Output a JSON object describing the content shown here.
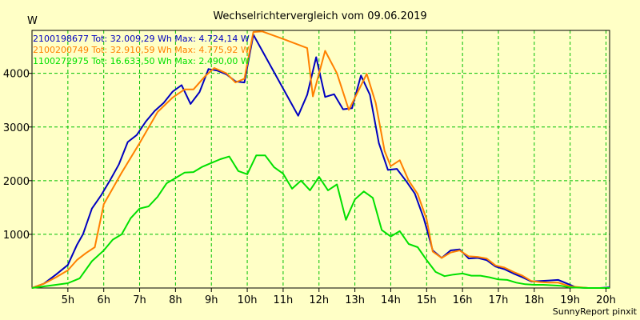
{
  "chart_data": {
    "type": "line",
    "title": "Wechselrichtervergleich vom 09.06.2019",
    "ylabel": "W",
    "xlabel": "",
    "credit": "SunnyReport pinxit",
    "xlim": [
      4.0,
      20.1
    ],
    "ylim": [
      0,
      4800
    ],
    "x_ticks": [
      5,
      6,
      7,
      8,
      9,
      10,
      11,
      12,
      13,
      14,
      15,
      16,
      17,
      18,
      19,
      20
    ],
    "x_tick_labels": [
      "5h",
      "6h",
      "7h",
      "8h",
      "9h",
      "10h",
      "11h",
      "12h",
      "13h",
      "14h",
      "15h",
      "16h",
      "17h",
      "18h",
      "19h",
      "20h"
    ],
    "y_ticks": [
      1000,
      2000,
      3000,
      4000
    ],
    "y_tick_labels": [
      "1000",
      "2000",
      "3000",
      "4000"
    ],
    "grid": true,
    "legend_position": "top-left",
    "series": [
      {
        "name": "2100198677",
        "legend": "2100198677 Tot: 32.009,29 Wh Max: 4.724,14 W",
        "color": "#0000c0",
        "points": [
          [
            4.0,
            0
          ],
          [
            4.33,
            80
          ],
          [
            4.67,
            250
          ],
          [
            5.0,
            430
          ],
          [
            5.25,
            800
          ],
          [
            5.42,
            1000
          ],
          [
            5.67,
            1480
          ],
          [
            5.92,
            1720
          ],
          [
            6.17,
            2000
          ],
          [
            6.42,
            2300
          ],
          [
            6.67,
            2720
          ],
          [
            6.92,
            2850
          ],
          [
            7.17,
            3100
          ],
          [
            7.42,
            3300
          ],
          [
            7.67,
            3450
          ],
          [
            7.92,
            3660
          ],
          [
            8.17,
            3780
          ],
          [
            8.42,
            3430
          ],
          [
            8.67,
            3650
          ],
          [
            8.92,
            4080
          ],
          [
            9.17,
            4050
          ],
          [
            9.42,
            3980
          ],
          [
            9.67,
            3850
          ],
          [
            9.92,
            3830
          ],
          [
            10.17,
            4720
          ],
          [
            11.42,
            3210
          ],
          [
            11.67,
            3600
          ],
          [
            11.92,
            4300
          ],
          [
            12.17,
            3560
          ],
          [
            12.42,
            3610
          ],
          [
            12.67,
            3330
          ],
          [
            12.92,
            3350
          ],
          [
            13.17,
            3960
          ],
          [
            13.42,
            3600
          ],
          [
            13.67,
            2700
          ],
          [
            13.92,
            2200
          ],
          [
            14.17,
            2220
          ],
          [
            14.42,
            2000
          ],
          [
            14.67,
            1760
          ],
          [
            14.92,
            1300
          ],
          [
            15.17,
            700
          ],
          [
            15.42,
            560
          ],
          [
            15.67,
            700
          ],
          [
            15.92,
            720
          ],
          [
            16.17,
            550
          ],
          [
            16.42,
            560
          ],
          [
            16.67,
            520
          ],
          [
            16.92,
            400
          ],
          [
            17.17,
            350
          ],
          [
            17.42,
            270
          ],
          [
            17.67,
            200
          ],
          [
            17.92,
            120
          ],
          [
            18.17,
            130
          ],
          [
            18.42,
            140
          ],
          [
            18.67,
            150
          ],
          [
            18.92,
            80
          ],
          [
            19.17,
            10
          ],
          [
            19.5,
            0
          ],
          [
            19.83,
            0
          ],
          [
            20.1,
            10
          ]
        ]
      },
      {
        "name": "2100200749",
        "legend": "2100200749 Tot: 32.910,59 Wh Max: 4.775,92 W",
        "color": "#ff8000",
        "points": [
          [
            4.0,
            0
          ],
          [
            4.33,
            80
          ],
          [
            4.67,
            200
          ],
          [
            5.0,
            330
          ],
          [
            5.25,
            520
          ],
          [
            5.5,
            650
          ],
          [
            5.75,
            760
          ],
          [
            6.0,
            1560
          ],
          [
            6.5,
            2150
          ],
          [
            7.0,
            2700
          ],
          [
            7.5,
            3280
          ],
          [
            7.92,
            3550
          ],
          [
            8.25,
            3700
          ],
          [
            8.5,
            3700
          ],
          [
            8.83,
            3950
          ],
          [
            9.08,
            4100
          ],
          [
            9.42,
            4000
          ],
          [
            9.67,
            3830
          ],
          [
            9.92,
            3900
          ],
          [
            10.17,
            4770
          ],
          [
            10.42,
            4780
          ],
          [
            11.0,
            4640
          ],
          [
            11.67,
            4470
          ],
          [
            11.83,
            3570
          ],
          [
            12.17,
            4420
          ],
          [
            12.5,
            4000
          ],
          [
            12.83,
            3320
          ],
          [
            13.08,
            3650
          ],
          [
            13.33,
            3990
          ],
          [
            13.58,
            3450
          ],
          [
            13.83,
            2550
          ],
          [
            14.0,
            2270
          ],
          [
            14.25,
            2380
          ],
          [
            14.5,
            2000
          ],
          [
            14.75,
            1750
          ],
          [
            15.0,
            1280
          ],
          [
            15.17,
            680
          ],
          [
            15.42,
            560
          ],
          [
            15.67,
            660
          ],
          [
            15.92,
            700
          ],
          [
            16.17,
            590
          ],
          [
            16.42,
            580
          ],
          [
            16.67,
            550
          ],
          [
            16.92,
            420
          ],
          [
            17.17,
            380
          ],
          [
            17.42,
            300
          ],
          [
            17.67,
            230
          ],
          [
            17.92,
            130
          ],
          [
            18.17,
            110
          ],
          [
            18.42,
            100
          ],
          [
            18.67,
            100
          ],
          [
            19.0,
            30
          ],
          [
            19.5,
            0
          ],
          [
            20.1,
            0
          ]
        ]
      },
      {
        "name": "1100272975",
        "legend": "1100272975 Tot: 16.633,50 Wh Max: 2.490,00 W",
        "color": "#00e000",
        "points": [
          [
            4.0,
            0
          ],
          [
            4.33,
            30
          ],
          [
            4.67,
            60
          ],
          [
            5.0,
            90
          ],
          [
            5.33,
            180
          ],
          [
            5.67,
            500
          ],
          [
            6.0,
            700
          ],
          [
            6.25,
            900
          ],
          [
            6.5,
            1000
          ],
          [
            6.75,
            1300
          ],
          [
            7.0,
            1480
          ],
          [
            7.25,
            1520
          ],
          [
            7.5,
            1700
          ],
          [
            7.75,
            1950
          ],
          [
            8.0,
            2050
          ],
          [
            8.25,
            2150
          ],
          [
            8.5,
            2160
          ],
          [
            8.75,
            2260
          ],
          [
            9.0,
            2330
          ],
          [
            9.25,
            2400
          ],
          [
            9.5,
            2450
          ],
          [
            9.75,
            2180
          ],
          [
            10.0,
            2120
          ],
          [
            10.25,
            2470
          ],
          [
            10.5,
            2470
          ],
          [
            10.75,
            2250
          ],
          [
            11.0,
            2130
          ],
          [
            11.25,
            1850
          ],
          [
            11.5,
            2000
          ],
          [
            11.75,
            1820
          ],
          [
            12.0,
            2070
          ],
          [
            12.25,
            1820
          ],
          [
            12.5,
            1930
          ],
          [
            12.75,
            1270
          ],
          [
            13.0,
            1650
          ],
          [
            13.25,
            1800
          ],
          [
            13.5,
            1680
          ],
          [
            13.75,
            1080
          ],
          [
            14.0,
            960
          ],
          [
            14.25,
            1060
          ],
          [
            14.5,
            820
          ],
          [
            14.75,
            760
          ],
          [
            15.0,
            520
          ],
          [
            15.25,
            300
          ],
          [
            15.5,
            220
          ],
          [
            15.75,
            250
          ],
          [
            16.0,
            270
          ],
          [
            16.25,
            230
          ],
          [
            16.5,
            230
          ],
          [
            16.75,
            200
          ],
          [
            17.0,
            160
          ],
          [
            17.25,
            150
          ],
          [
            17.5,
            100
          ],
          [
            17.75,
            70
          ],
          [
            18.0,
            60
          ],
          [
            18.25,
            60
          ],
          [
            18.5,
            50
          ],
          [
            18.75,
            40
          ],
          [
            19.0,
            10
          ],
          [
            19.5,
            0
          ],
          [
            20.1,
            0
          ]
        ]
      }
    ]
  }
}
